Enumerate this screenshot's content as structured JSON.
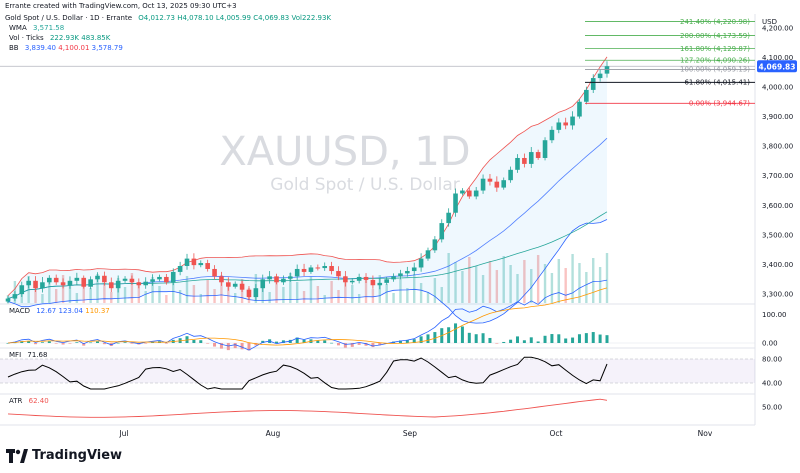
{
  "header": {
    "caption": "Errante created with TradingView.com, Oct 13, 2025 09:30 UTC+3",
    "symbol_line": "Gold Spot / U.S. Dollar · 1D · Errante",
    "ohlc": {
      "o": "O4,012.73",
      "h": "H4,078.10",
      "l": "L4,005.99",
      "c": "C4,069.83",
      "vol": "Vol222.93K"
    },
    "wma": {
      "name": "WMA",
      "value": "3,571.58"
    },
    "vol_ticks": {
      "name": "Vol · Ticks",
      "v1": "222.93K",
      "v2": "483.85K"
    },
    "bb": {
      "name": "BB",
      "v1": "3,839.40",
      "v2": "4,100.01",
      "v3": "3,578.79"
    }
  },
  "watermark": {
    "title": "XAUUSD, 1D",
    "subtitle": "Gold Spot / U.S. Dollar"
  },
  "currency": "USD",
  "last_price": "4,069.83",
  "fib_labels": [
    {
      "ratio": "241.40% (4,220.98)",
      "price": 4220.98,
      "color": "#4caf50"
    },
    {
      "ratio": "200.00% (4,173.59)",
      "price": 4173.59,
      "color": "#4caf50"
    },
    {
      "ratio": "161.80% (4,129.87)",
      "price": 4129.87,
      "color": "#4caf50"
    },
    {
      "ratio": "127.20% (4,090.26)",
      "price": 4090.26,
      "color": "#4caf50"
    },
    {
      "ratio": "100.00% (4,059.13)",
      "price": 4059.13,
      "color": "#9598a1"
    },
    {
      "ratio": "61.80% (4,015.41)",
      "price": 4015.41,
      "color": "#131722"
    },
    {
      "ratio": "0.00% (3,944.67)",
      "price": 3944.67,
      "color": "#f23645"
    }
  ],
  "panes": {
    "macd": {
      "label": "MACD",
      "v1": "12.67",
      "v2": "123.04",
      "v3": "110.37",
      "ticks": [
        "100.00",
        "0.00"
      ]
    },
    "mfi": {
      "label": "MFI",
      "value": "71.68",
      "ticks": [
        "80.00",
        "40.00"
      ]
    },
    "atr": {
      "label": "ATR",
      "value": "62.40",
      "ticks": [
        "50.00"
      ]
    }
  },
  "time_axis": [
    "Jul",
    "Aug",
    "Sep",
    "Oct",
    "Nov"
  ],
  "branding": {
    "logo_text": "TradingView"
  },
  "colors": {
    "up": "#26a69a",
    "down": "#ef5350",
    "bb_basis": "#ef5350",
    "bb_band": "#2962ff",
    "wma": "#26a69a",
    "macd": "#2962ff",
    "signal": "#ff9800",
    "mfi": "#000000",
    "atr": "#ef5350",
    "price_tag": "#2962ff"
  },
  "chart_data": {
    "type": "candlestick",
    "interval": "1D",
    "y_axis": {
      "ticks": [
        3300,
        3400,
        3500,
        3600,
        3700,
        3800,
        3900,
        4000,
        4100,
        4200
      ],
      "tick_labels": [
        "3,300.00",
        "3,400.00",
        "3,500.00",
        "3,600.00",
        "3,700.00",
        "3,800.00",
        "3,900.00",
        "4,000.00",
        "4,100.00",
        "4,200.00"
      ],
      "range": [
        3270,
        4260
      ]
    },
    "x_axis": {
      "labels": [
        "Jul",
        "Aug",
        "Sep",
        "Oct",
        "Nov"
      ]
    },
    "ohlc_close": [
      3285,
      3300,
      3330,
      3345,
      3320,
      3340,
      3355,
      3340,
      3330,
      3345,
      3355,
      3325,
      3350,
      3362,
      3340,
      3320,
      3345,
      3352,
      3340,
      3330,
      3342,
      3350,
      3358,
      3340,
      3375,
      3395,
      3420,
      3398,
      3405,
      3385,
      3360,
      3340,
      3325,
      3335,
      3315,
      3290,
      3320,
      3350,
      3360,
      3340,
      3352,
      3360,
      3385,
      3375,
      3390,
      3388,
      3395,
      3378,
      3360,
      3340,
      3345,
      3358,
      3348,
      3330,
      3338,
      3350,
      3360,
      3370,
      3378,
      3390,
      3420,
      3448,
      3485,
      3540,
      3575,
      3640,
      3650,
      3630,
      3650,
      3690,
      3680,
      3660,
      3685,
      3720,
      3760,
      3740,
      3780,
      3760,
      3820,
      3855,
      3880,
      3870,
      3900,
      3950,
      3990,
      4030,
      4045,
      4069.83
    ],
    "last_close": 4069.83,
    "macd_hist_max": 123.04,
    "mfi_last": 71.68,
    "atr_last": 62.4
  }
}
